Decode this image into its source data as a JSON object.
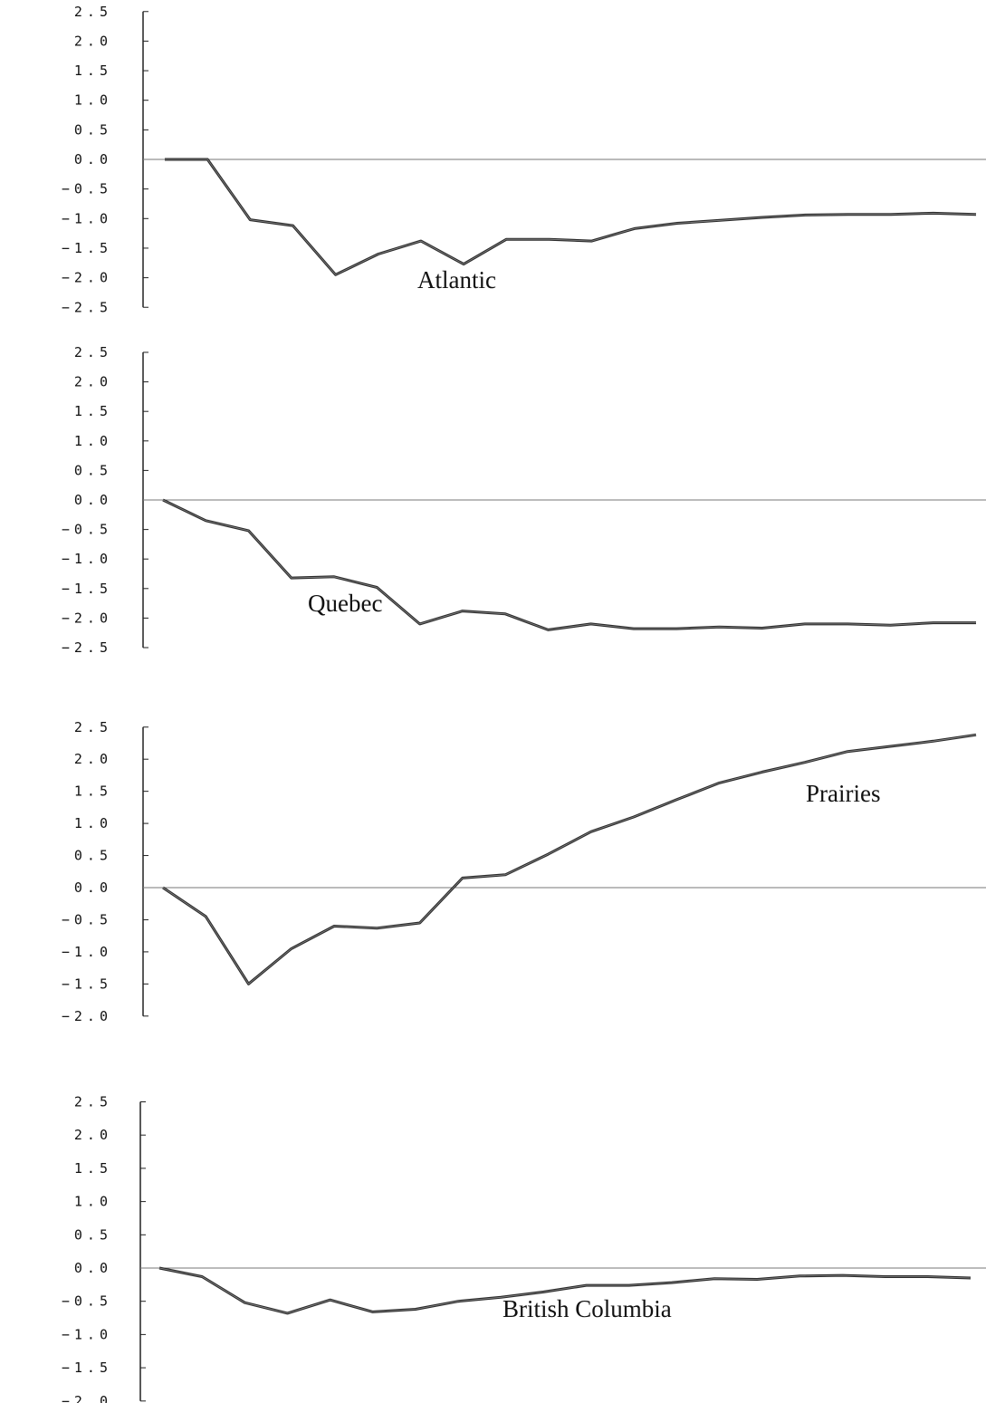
{
  "chart_data": [
    {
      "type": "line",
      "label": "Atlantic",
      "yticks": [
        "2.5",
        "2.0",
        "1.5",
        "1.0",
        "0.5",
        "0.0",
        "-0.5",
        "-1.0",
        "-1.5",
        "-2.0",
        "-2.5"
      ],
      "ylim": [
        -2.5,
        2.5
      ],
      "zero_line": true,
      "values": [
        0.0,
        0.0,
        -1.02,
        -1.12,
        -1.95,
        -1.6,
        -1.38,
        -1.77,
        -1.35,
        -1.35,
        -1.38,
        -1.17,
        -1.08,
        -1.03,
        -0.98,
        -0.94,
        -0.93,
        -0.93,
        -0.91,
        -0.93
      ]
    },
    {
      "type": "line",
      "label": "Quebec",
      "yticks": [
        "2.5",
        "2.0",
        "1.5",
        "1.0",
        "0.5",
        "0.0",
        "-0.5",
        "-1.0",
        "-1.5",
        "-2.0",
        "-2.5"
      ],
      "ylim": [
        -2.5,
        2.5
      ],
      "zero_line": true,
      "values": [
        0.0,
        -0.35,
        -0.52,
        -1.32,
        -1.3,
        -1.48,
        -2.1,
        -1.88,
        -1.93,
        -2.2,
        -2.1,
        -2.18,
        -2.18,
        -2.15,
        -2.17,
        -2.1,
        -2.1,
        -2.12,
        -2.08,
        -2.08
      ]
    },
    {
      "type": "line",
      "label": "Prairies",
      "yticks": [
        "2.5",
        "2.0",
        "1.5",
        "1.0",
        "0.5",
        "0.0",
        "-0.5",
        "-1.0",
        "-1.5",
        "-2.0"
      ],
      "ylim": [
        -2.0,
        2.5
      ],
      "zero_line": true,
      "values": [
        0.0,
        -0.45,
        -1.5,
        -0.95,
        -0.6,
        -0.63,
        -0.55,
        0.15,
        0.2,
        0.52,
        0.87,
        1.1,
        1.37,
        1.63,
        1.8,
        1.95,
        2.12,
        2.2,
        2.28,
        2.38
      ]
    },
    {
      "type": "line",
      "label": "British Columbia",
      "yticks": [
        "2.5",
        "2.0",
        "1.5",
        "1.0",
        "0.5",
        "0.0",
        "-0.5",
        "-1.0",
        "-1.5",
        "-2.0"
      ],
      "ylim": [
        -2.0,
        2.5
      ],
      "zero_line": true,
      "values": [
        0.0,
        -0.13,
        -0.52,
        -0.68,
        -0.48,
        -0.66,
        -0.62,
        -0.5,
        -0.44,
        -0.36,
        -0.26,
        -0.26,
        -0.22,
        -0.16,
        -0.17,
        -0.12,
        -0.11,
        -0.13,
        -0.13,
        -0.15
      ]
    }
  ]
}
